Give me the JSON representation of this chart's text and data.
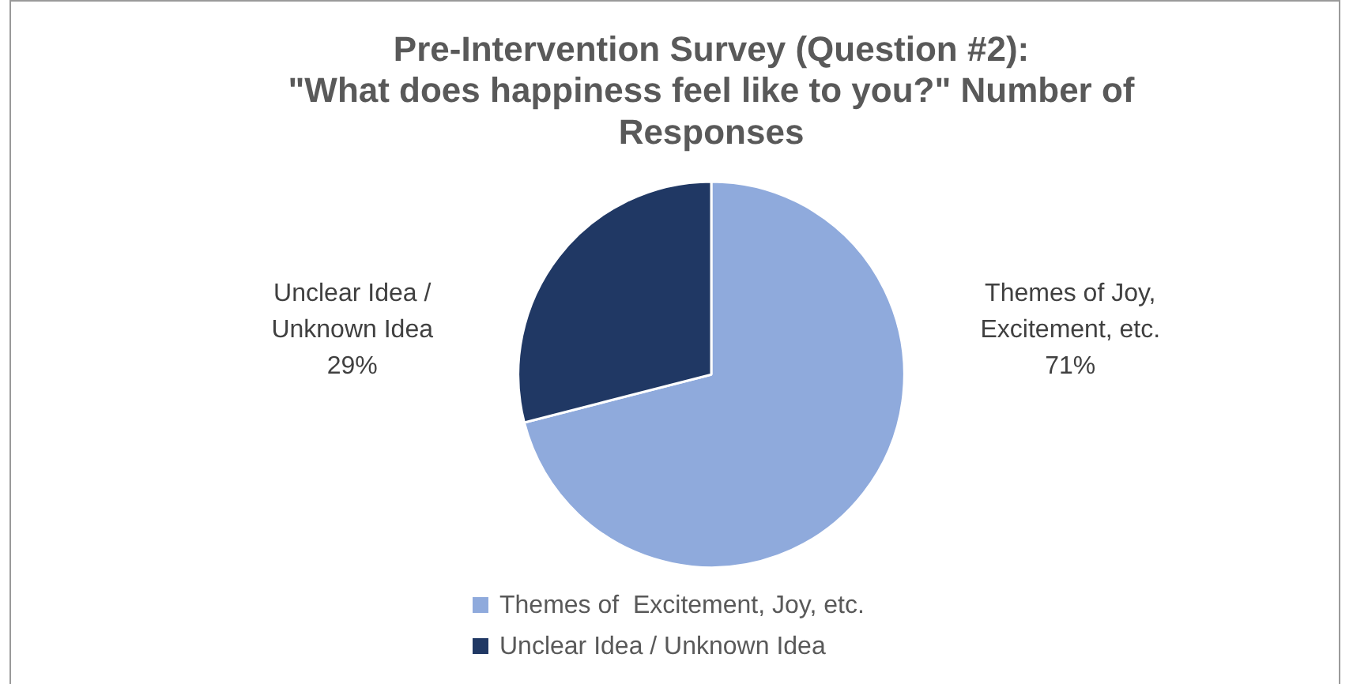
{
  "chart_data": {
    "type": "pie",
    "title": "Pre-Intervention Survey (Question #2):\n\"What does happiness feel like to you?\" Number of\nResponses",
    "categories": [
      "Themes of  Excitement, Joy, etc.",
      "Unclear Idea / Unknown Idea"
    ],
    "values": [
      71,
      29
    ],
    "colors": [
      "#8faadc",
      "#203864"
    ],
    "value_labels": [
      "Themes of Joy,\nExcitement, etc.\n71%",
      "Unclear Idea /\nUnknown Idea\n29%"
    ],
    "legend": "bottom"
  }
}
